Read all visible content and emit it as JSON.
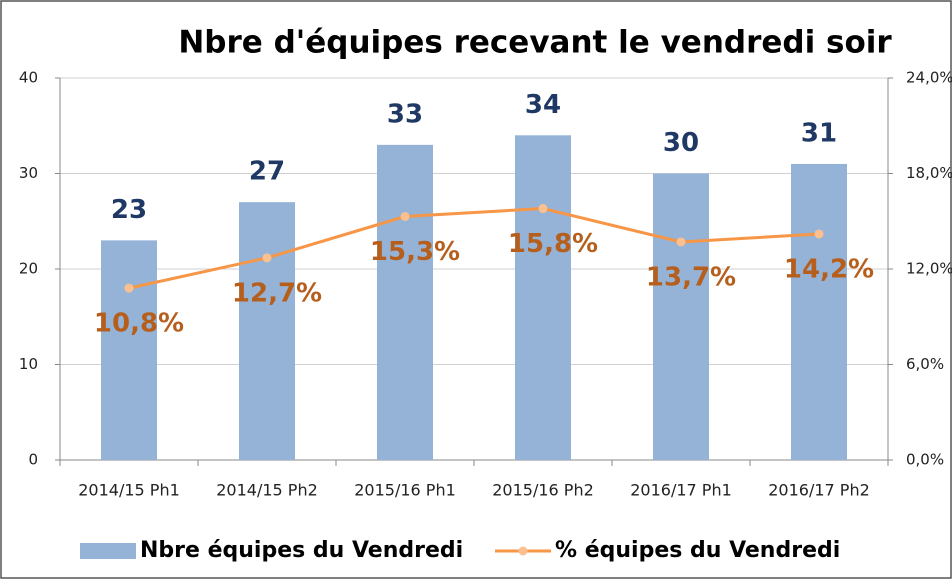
{
  "chart_data": {
    "type": "bar",
    "title": "Nbre d'équipes recevant le vendredi soir",
    "categories": [
      "2014/15 Ph1",
      "2014/15 Ph2",
      "2015/16 Ph1",
      "2015/16 Ph2",
      "2016/17 Ph1",
      "2016/17 Ph2"
    ],
    "series": [
      {
        "name": "Nbre équipes du Vendredi",
        "type": "bar",
        "color": "#95b3d7",
        "label_color": "#1f3864",
        "values": [
          23,
          27,
          33,
          34,
          30,
          31
        ]
      },
      {
        "name": "% équipes du Vendredi",
        "type": "line",
        "axis": "y2",
        "color": "#f79646",
        "label_color": "#b65f1d",
        "values": [
          10.8,
          12.7,
          15.3,
          15.8,
          13.7,
          14.2
        ],
        "value_labels": [
          "10,8%",
          "12,7%",
          "15,3%",
          "15,8%",
          "13,7%",
          "14,2%"
        ]
      }
    ],
    "ylim": [
      0,
      40
    ],
    "yticks": [
      0,
      10,
      20,
      30,
      40
    ],
    "y2lim": [
      0,
      24
    ],
    "y2ticks": [
      {
        "value": 0,
        "label": "0,0%"
      },
      {
        "value": 6,
        "label": "6,0%"
      },
      {
        "value": 12,
        "label": "12,0%"
      },
      {
        "value": 18,
        "label": "18,0%"
      },
      {
        "value": 24,
        "label": "24,0%"
      }
    ],
    "grid": true,
    "legend": "bottom"
  }
}
